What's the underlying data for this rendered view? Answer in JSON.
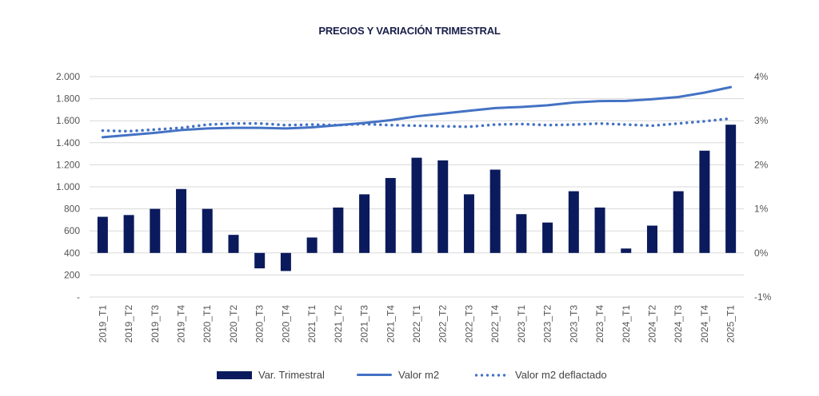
{
  "chart_data": {
    "type": "bar",
    "title": "PRECIOS Y VARIACIÓN TRIMESTRAL",
    "categories": [
      "2019_T1",
      "2019_T2",
      "2019_T3",
      "2019_T4",
      "2020_T1",
      "2020_T2",
      "2020_T3",
      "2020_T4",
      "2021_T1",
      "2021_T2",
      "2021_T3",
      "2021_T4",
      "2022_T1",
      "2022_T2",
      "2022_T3",
      "2022_T4",
      "2023_T1",
      "2023_T2",
      "2023_T3",
      "2023_T4",
      "2024_T1",
      "2024_T2",
      "2024_T3",
      "2024_T4",
      "2025_T1"
    ],
    "left_axis": {
      "ylim": [
        0,
        2000
      ],
      "ticks": [
        0,
        200,
        400,
        600,
        800,
        1000,
        1200,
        1400,
        1600,
        1800,
        2000
      ],
      "tick_labels": [
        "-",
        "200",
        "400",
        "600",
        "800",
        "1.000",
        "1.200",
        "1.400",
        "1.600",
        "1.800",
        "2.000"
      ]
    },
    "right_axis": {
      "ylim": [
        -1,
        4
      ],
      "ticks": [
        -1,
        0,
        1,
        2,
        3,
        4
      ],
      "tick_labels": [
        "-1%",
        "0%",
        "1%",
        "2%",
        "3%",
        "4%"
      ]
    },
    "series": [
      {
        "name": "Var. Trimestral",
        "kind": "bar",
        "axis": "right",
        "unit": "%",
        "color": "#0a1a5c",
        "values": [
          0.82,
          0.86,
          1.0,
          1.45,
          1.0,
          0.41,
          -0.35,
          -0.41,
          0.35,
          1.03,
          1.33,
          1.7,
          2.16,
          2.1,
          1.33,
          1.89,
          0.88,
          0.69,
          1.4,
          1.03,
          0.1,
          0.62,
          1.4,
          2.32,
          2.91
        ]
      },
      {
        "name": "Valor m2",
        "kind": "line",
        "axis": "left",
        "color": "#4472c4",
        "values": [
          1450,
          1470,
          1490,
          1515,
          1530,
          1535,
          1535,
          1530,
          1540,
          1560,
          1580,
          1605,
          1640,
          1665,
          1690,
          1715,
          1725,
          1740,
          1765,
          1778,
          1780,
          1795,
          1815,
          1855,
          1905
        ]
      },
      {
        "name": "Valor m2 deflactado",
        "kind": "dotted-line",
        "axis": "left",
        "color": "#4472c4",
        "values": [
          1510,
          1505,
          1520,
          1535,
          1565,
          1575,
          1575,
          1560,
          1565,
          1560,
          1570,
          1560,
          1555,
          1550,
          1545,
          1565,
          1570,
          1560,
          1565,
          1575,
          1565,
          1555,
          1575,
          1595,
          1620
        ]
      }
    ],
    "grid": true,
    "legend_position": "bottom"
  }
}
